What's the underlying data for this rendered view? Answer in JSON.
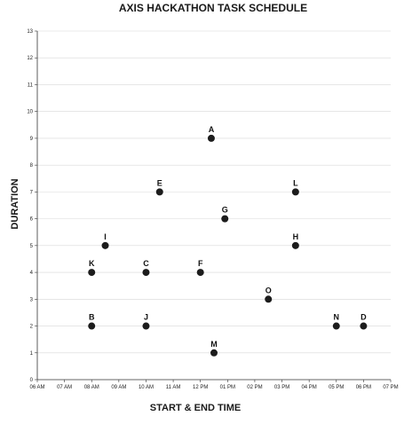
{
  "chart_data": {
    "type": "scatter",
    "title": "AXIS HACKATHON TASK SCHEDULE",
    "xlabel": "START & END TIME",
    "ylabel": "DURATION",
    "x_ticks": [
      "06 AM",
      "07 AM",
      "08 AM",
      "09 AM",
      "10 AM",
      "11 AM",
      "12 PM",
      "01 PM",
      "02 PM",
      "03 PM",
      "04 PM",
      "05 PM",
      "06 PM",
      "07 PM"
    ],
    "xlim": [
      6,
      19
    ],
    "ylim": [
      0,
      13
    ],
    "y_ticks": [
      0,
      1,
      2,
      3,
      4,
      5,
      6,
      7,
      8,
      9,
      10,
      11,
      12,
      13
    ],
    "grid": true,
    "points": [
      {
        "label": "A",
        "x": 12.4,
        "y": 9
      },
      {
        "label": "B",
        "x": 8.0,
        "y": 2
      },
      {
        "label": "C",
        "x": 10.0,
        "y": 4
      },
      {
        "label": "D",
        "x": 18.0,
        "y": 2
      },
      {
        "label": "E",
        "x": 10.5,
        "y": 7
      },
      {
        "label": "F",
        "x": 12.0,
        "y": 4
      },
      {
        "label": "G",
        "x": 12.9,
        "y": 6
      },
      {
        "label": "H",
        "x": 15.5,
        "y": 5
      },
      {
        "label": "I",
        "x": 8.5,
        "y": 5
      },
      {
        "label": "J",
        "x": 10.0,
        "y": 2
      },
      {
        "label": "K",
        "x": 8.0,
        "y": 4
      },
      {
        "label": "L",
        "x": 15.5,
        "y": 7
      },
      {
        "label": "M",
        "x": 12.5,
        "y": 1
      },
      {
        "label": "N",
        "x": 17.0,
        "y": 2
      },
      {
        "label": "O",
        "x": 14.5,
        "y": 3
      }
    ]
  }
}
